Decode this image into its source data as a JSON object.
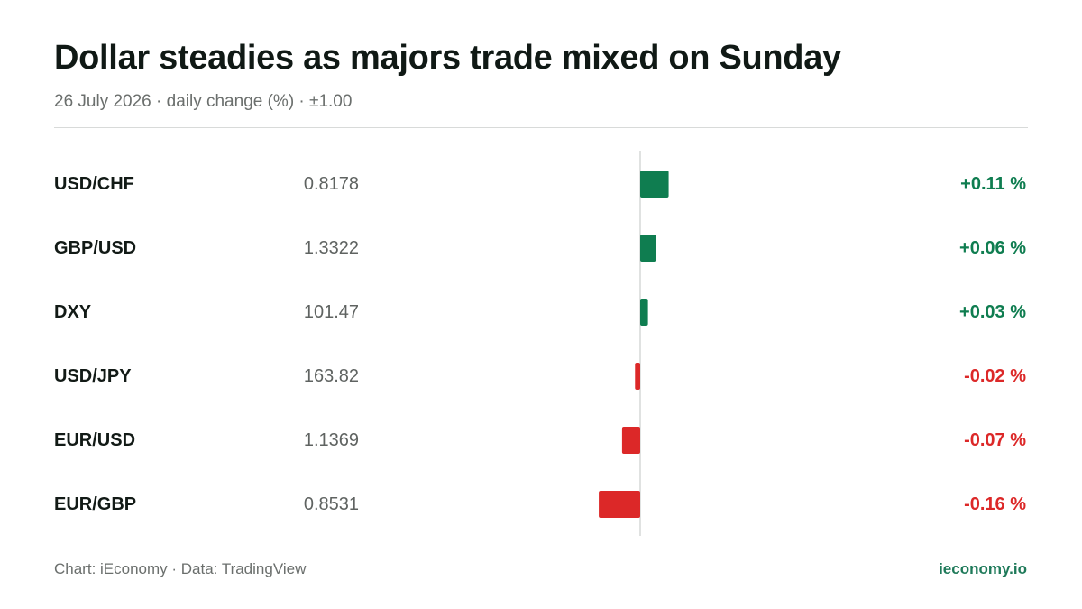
{
  "header": {
    "title": "Dollar steadies as majors trade mixed on Sunday",
    "subtitle": "26 July 2026 · daily change (%) · ±1.00"
  },
  "footer": {
    "source": "Chart: iEconomy · Data: TradingView",
    "brand": "ieconomy.io"
  },
  "colors": {
    "positive": "#0f7d50",
    "negative": "#dc2828",
    "axis": "#d6d8d7"
  },
  "chart_data": {
    "type": "bar",
    "orientation": "horizontal",
    "title": "Dollar steadies as majors trade mixed on Sunday",
    "subtitle": "26 July 2026 · daily change (%) · ±1.00",
    "categories": [
      "USD/CHF",
      "GBP/USD",
      "DXY",
      "USD/JPY",
      "EUR/USD",
      "EUR/GBP"
    ],
    "prices": [
      "0.8178",
      "1.3322",
      "101.47",
      "163.82",
      "1.1369",
      "0.8531"
    ],
    "values": [
      0.11,
      0.06,
      0.03,
      -0.02,
      -0.07,
      -0.16
    ],
    "value_labels": [
      "+0.11 %",
      "+0.06 %",
      "+0.03 %",
      "-0.02 %",
      "-0.07 %",
      "-0.16 %"
    ],
    "unit": "%",
    "xlim": [
      -1.0,
      1.0
    ],
    "grid": false,
    "legend": "none"
  }
}
